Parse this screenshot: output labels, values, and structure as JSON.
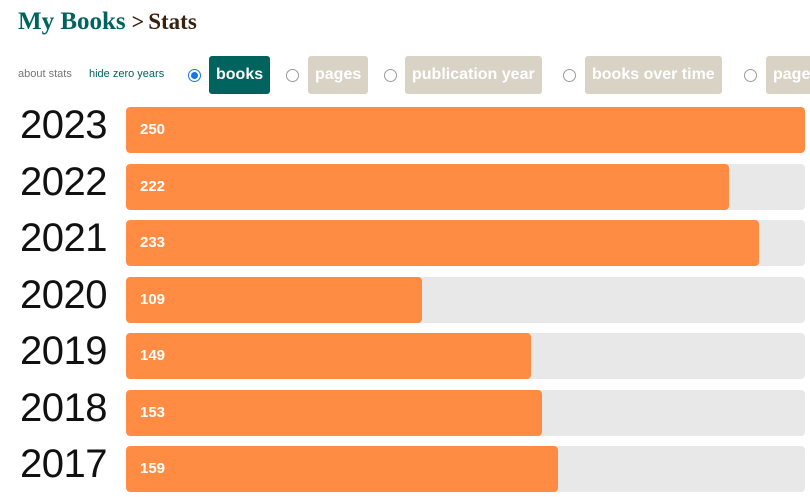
{
  "breadcrumb": {
    "root": "My Books",
    "separator": ">",
    "current": "Stats"
  },
  "links": {
    "about": "about stats",
    "hide_zero": "hide zero years"
  },
  "tabs": [
    {
      "label": "books",
      "selected": true
    },
    {
      "label": "pages",
      "selected": false
    },
    {
      "label": "publication year",
      "selected": false
    },
    {
      "label": "books over time",
      "selected": false
    },
    {
      "label": "pages",
      "selected": false
    }
  ],
  "colors": {
    "accent": "#00635d",
    "bar": "#ff8c42",
    "track": "#e8e8e8",
    "tab_inactive": "#d8d3c5"
  },
  "chart_data": {
    "type": "bar",
    "orientation": "horizontal",
    "categories": [
      "2023",
      "2022",
      "2021",
      "2020",
      "2019",
      "2018",
      "2017"
    ],
    "values": [
      250,
      222,
      233,
      109,
      149,
      153,
      159
    ],
    "xlim": [
      0,
      250
    ]
  }
}
